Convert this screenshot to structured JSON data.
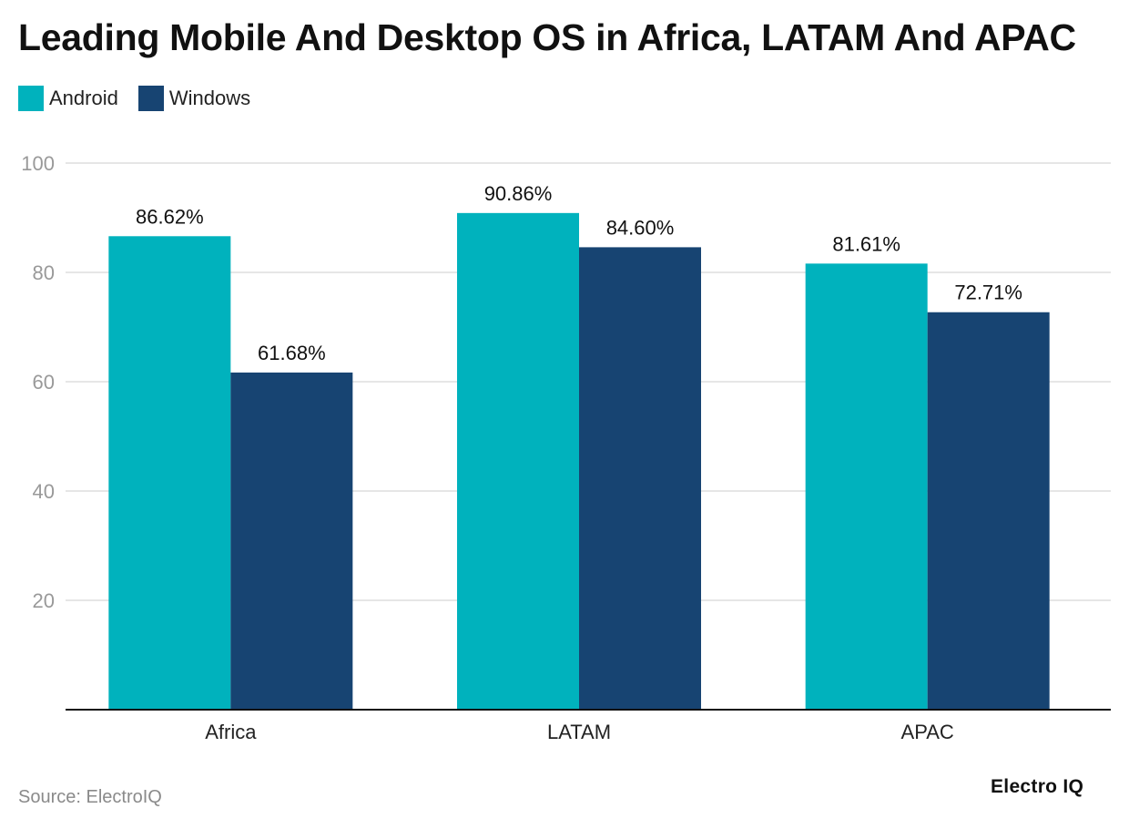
{
  "title": "Leading Mobile And Desktop OS in Africa, LATAM And APAC",
  "source": "Source: ElectroIQ",
  "brand": "Electro IQ",
  "colors": {
    "android": "#00b2bd",
    "windows": "#174472",
    "grid": "#dddddd",
    "axis": "#111111",
    "tick_label": "#999999"
  },
  "chart_data": {
    "type": "bar",
    "title": "Leading Mobile And Desktop OS in Africa, LATAM And APAC",
    "xlabel": "",
    "ylabel": "",
    "categories": [
      "Africa",
      "LATAM",
      "APAC"
    ],
    "series": [
      {
        "name": "Android",
        "color": "#00b2bd",
        "values": [
          86.62,
          90.86,
          81.61
        ],
        "labels": [
          "86.62%",
          "90.86%",
          "81.61%"
        ]
      },
      {
        "name": "Windows",
        "color": "#174472",
        "values": [
          61.68,
          84.6,
          72.71
        ],
        "labels": [
          "61.68%",
          "84.60%",
          "72.71%"
        ]
      }
    ],
    "ylim": [
      0,
      100
    ],
    "yticks": [
      20,
      40,
      60,
      80,
      100
    ],
    "ytick_labels": [
      "20",
      "40",
      "60",
      "80",
      "100"
    ],
    "grid": true,
    "legend_position": "top-left"
  }
}
